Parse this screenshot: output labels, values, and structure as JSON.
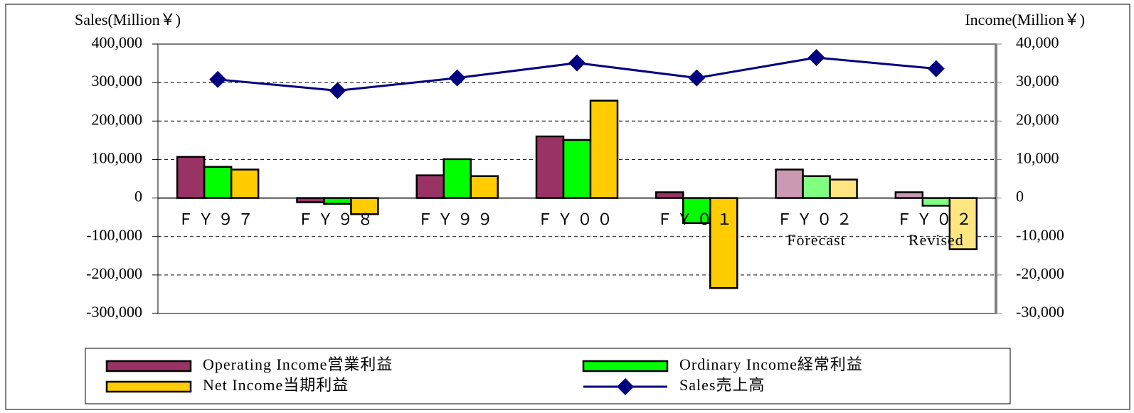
{
  "chart_data": {
    "type": "bar",
    "y_axis_title": "Sales(Million￥)",
    "y2_axis_title": "Income(Million￥)",
    "categories": [
      "ＦＹ９７",
      "ＦＹ９８",
      "ＦＹ９９",
      "ＦＹ００",
      "ＦＹ０１",
      "ＦＹ０２\nForecast",
      "ＦＹ０２\nRevised"
    ],
    "series": [
      {
        "name": "Operating Income営業利益",
        "type": "bar",
        "axis": "y2",
        "color": "#993366",
        "point_colors": [
          "#993366",
          "#993366",
          "#993366",
          "#993366",
          "#993366",
          "#cc99b3",
          "#cc99b3"
        ],
        "values": [
          10700,
          -1100,
          5900,
          16000,
          1500,
          7400,
          1500
        ]
      },
      {
        "name": "Ordinary Income経常利益",
        "type": "bar",
        "axis": "y2",
        "color": "#00ff00",
        "point_colors": [
          "#00ff00",
          "#00ff00",
          "#00ff00",
          "#00ff00",
          "#00ff00",
          "#80ff80",
          "#80ff80"
        ],
        "values": [
          8100,
          -1500,
          10100,
          15100,
          -6500,
          5700,
          -2000
        ]
      },
      {
        "name": "Net Income当期利益",
        "type": "bar",
        "axis": "y2",
        "color": "#ffcc00",
        "point_colors": [
          "#ffcc00",
          "#ffcc00",
          "#ffcc00",
          "#ffcc00",
          "#ffcc00",
          "#ffe680",
          "#ffe680"
        ],
        "values": [
          7400,
          -4200,
          5700,
          25300,
          -23400,
          4800,
          -13300
        ]
      },
      {
        "name": "Sales売上高",
        "type": "line",
        "axis": "y",
        "color": "#000080",
        "values": [
          308000,
          279000,
          312000,
          351000,
          312000,
          365000,
          336000
        ]
      }
    ],
    "ylim": [
      -300000,
      400000
    ],
    "yticks": [
      {
        "value": -300000,
        "label": "-300,000"
      },
      {
        "value": -200000,
        "label": "-200,000"
      },
      {
        "value": -100000,
        "label": "-100,000"
      },
      {
        "value": 0,
        "label": "0"
      },
      {
        "value": 100000,
        "label": "100,000"
      },
      {
        "value": 200000,
        "label": "200,000"
      },
      {
        "value": 300000,
        "label": "300,000"
      },
      {
        "value": 400000,
        "label": "400,000"
      }
    ],
    "y2lim": [
      -30000,
      40000
    ],
    "y2ticks": [
      {
        "value": -30000,
        "label": "-30,000"
      },
      {
        "value": -20000,
        "label": "-20,000"
      },
      {
        "value": -10000,
        "label": "-10,000"
      },
      {
        "value": 0,
        "label": "0"
      },
      {
        "value": 10000,
        "label": "10,000"
      },
      {
        "value": 20000,
        "label": "20,000"
      },
      {
        "value": 30000,
        "label": "30,000"
      },
      {
        "value": 40000,
        "label": "40,000"
      }
    ],
    "negative_tick_color": "#ff0000",
    "grid": true,
    "legend": "bottom"
  }
}
